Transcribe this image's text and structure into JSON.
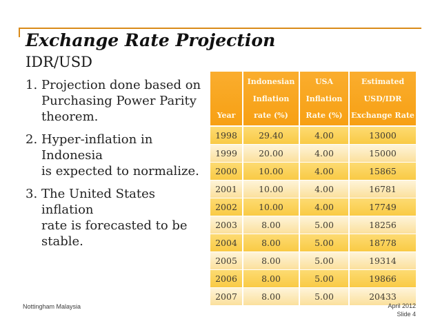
{
  "slide": {
    "title": "Exchange Rate Projection",
    "subtitle": "IDR/USD",
    "notes": [
      {
        "num": "1.",
        "text": "Projection done based on\nPurchasing Power Parity\ntheorem."
      },
      {
        "num": "2.",
        "text": "Hyper-inflation in Indonesia\nis expected to normalize."
      },
      {
        "num": "3.",
        "text": "The United States inflation\nrate is forecasted to be\nstable."
      }
    ],
    "footer": {
      "left": "Nottingham Malaysia",
      "right_line1": "April 2012",
      "right_line2": "Slide 4"
    }
  },
  "table": {
    "headers": [
      {
        "lines": [
          "",
          "",
          "Year"
        ]
      },
      {
        "lines": [
          "Indonesian",
          "Inflation",
          "rate (%)"
        ]
      },
      {
        "lines": [
          "USA",
          "Inflation",
          "Rate (%)"
        ]
      },
      {
        "lines": [
          "Estimated",
          "USD/IDR",
          "Exchange Rate"
        ]
      }
    ],
    "rows": [
      [
        "1998",
        "29.40",
        "4.00",
        "13000"
      ],
      [
        "1999",
        "20.00",
        "4.00",
        "15000"
      ],
      [
        "2000",
        "10.00",
        "4.00",
        "15865"
      ],
      [
        "2001",
        "10.00",
        "4.00",
        "16781"
      ],
      [
        "2002",
        "10.00",
        "4.00",
        "17749"
      ],
      [
        "2003",
        "8.00",
        "5.00",
        "18256"
      ],
      [
        "2004",
        "8.00",
        "5.00",
        "18778"
      ],
      [
        "2005",
        "8.00",
        "5.00",
        "19314"
      ],
      [
        "2006",
        "8.00",
        "5.00",
        "19866"
      ],
      [
        "2007",
        "8.00",
        "5.00",
        "20433"
      ]
    ]
  },
  "colors": {
    "accent_line": "#d98a18",
    "table_header_bg": "#f8a41b",
    "row_gold": "#f9ca45",
    "row_light": "#fbe09c",
    "header_text": "#fff9e8",
    "cell_text": "#3e3a32",
    "title_text": "#111111",
    "footer_text": "#3b3b3b"
  }
}
